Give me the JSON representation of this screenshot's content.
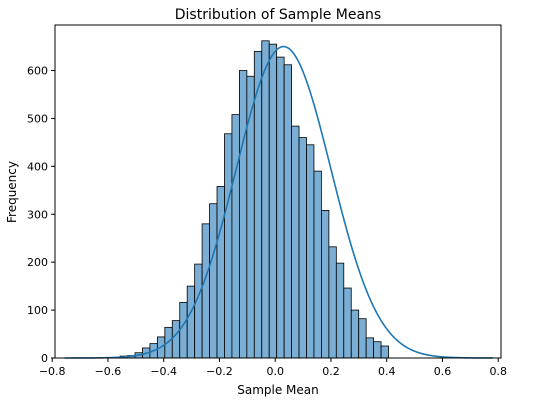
{
  "chart_data": {
    "type": "bar",
    "subtype": "histogram_with_kde",
    "title": "Distribution of Sample Means",
    "xlabel": "Sample Mean",
    "ylabel": "Frequency",
    "xlim": [
      -0.79,
      0.81
    ],
    "ylim": [
      0,
      695
    ],
    "xticks": [
      -0.8,
      -0.6,
      -0.4,
      -0.2,
      0.0,
      0.2,
      0.4,
      0.6,
      0.8
    ],
    "xtick_labels": [
      "−0.8",
      "−0.6",
      "−0.4",
      "−0.2",
      "0.0",
      "0.2",
      "0.4",
      "0.6",
      "0.8"
    ],
    "yticks": [
      0,
      100,
      200,
      300,
      400,
      500,
      600
    ],
    "ytick_labels": [
      "0",
      "100",
      "200",
      "300",
      "400",
      "500",
      "600"
    ],
    "bin_start": -0.5565,
    "bin_width": 0.02675,
    "values": [
      4,
      5,
      11,
      21,
      30,
      44,
      64,
      78,
      116,
      150,
      196,
      280,
      322,
      358,
      468,
      508,
      600,
      588,
      640,
      662,
      655,
      628,
      612,
      484,
      460,
      445,
      390,
      308,
      232,
      198,
      146,
      100,
      82,
      42,
      34,
      25
    ],
    "kde": {
      "mean": 0.03,
      "sd": 0.17,
      "peak": 650,
      "x_range": [
        -0.756,
        0.78
      ],
      "color": "#1f77b4"
    },
    "bar_color": "#7aaed4",
    "bar_edge": "#000000",
    "grid": false,
    "legend": false
  }
}
